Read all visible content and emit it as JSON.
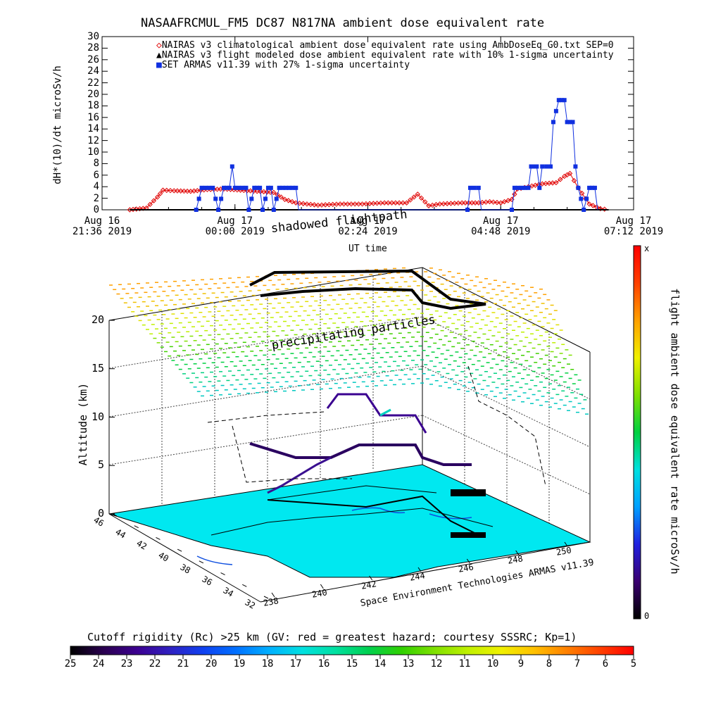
{
  "title": "NASAAFRCMUL_FM5 DC87 N817NA ambient dose equivalent rate",
  "chart_data": [
    {
      "type": "line",
      "title": "NASAAFRCMUL_FM5 DC87 N817NA ambient dose equivalent rate",
      "ylabel": "dH*(10)/dt microSv/h",
      "xlabel": "UT time",
      "ylim": [
        0,
        30
      ],
      "yticks": [
        "0",
        "2",
        "4",
        "6",
        "8",
        "10",
        "12",
        "14",
        "16",
        "18",
        "20",
        "22",
        "24",
        "26",
        "28",
        "30"
      ],
      "xticks": [
        {
          "day": "Aug 16",
          "time": "21:36 2019",
          "x_hours": -2.4
        },
        {
          "day": "Aug 17",
          "time": "00:00 2019",
          "x_hours": 0.0
        },
        {
          "day": "Aug 17",
          "time": "02:24 2019",
          "x_hours": 2.4
        },
        {
          "day": "Aug 17",
          "time": "04:48 2019",
          "x_hours": 4.8
        },
        {
          "day": "Aug 17",
          "time": "07:12 2019",
          "x_hours": 7.2
        }
      ],
      "legend": [
        {
          "label": "NAIRAS v3 climatological ambient dose equivalent rate using AmbDoseEq_G0.txt SEP=0",
          "marker": "diamond",
          "color": "#e00000"
        },
        {
          "label": "NAIRAS v3 flight modeled dose ambient equivalent rate with 10% 1-sigma uncertainty",
          "marker": "triangle",
          "color": "#000000"
        },
        {
          "label": "SET ARMAS v11.39 with 27% 1-sigma uncertainty",
          "marker": "square",
          "color": "#1030e0"
        }
      ],
      "series": [
        {
          "name": "NAIRAS v3 climatological ambient dose equivalent rate using AmbDoseEq_G0.txt SEP=0",
          "color": "#e00000",
          "points": [
            [
              -1.9,
              0
            ],
            [
              -1.6,
              0.3
            ],
            [
              -1.4,
              2.2
            ],
            [
              -1.3,
              3.4
            ],
            [
              -1.1,
              3.3
            ],
            [
              -0.8,
              3.2
            ],
            [
              -0.5,
              3.5
            ],
            [
              -0.2,
              3.6
            ],
            [
              0.1,
              3.4
            ],
            [
              0.4,
              3.2
            ],
            [
              0.7,
              3.0
            ],
            [
              0.9,
              1.8
            ],
            [
              1.1,
              1.2
            ],
            [
              1.5,
              0.8
            ],
            [
              1.9,
              1.0
            ],
            [
              2.3,
              1.0
            ],
            [
              2.7,
              1.2
            ],
            [
              3.1,
              1.2
            ],
            [
              3.3,
              2.7
            ],
            [
              3.5,
              0.7
            ],
            [
              3.7,
              1.0
            ],
            [
              4.1,
              1.2
            ],
            [
              4.4,
              1.2
            ],
            [
              4.6,
              1.4
            ],
            [
              4.8,
              1.2
            ],
            [
              5.0,
              1.8
            ],
            [
              5.1,
              3.6
            ],
            [
              5.3,
              4.0
            ],
            [
              5.55,
              4.5
            ],
            [
              5.8,
              4.7
            ],
            [
              5.95,
              5.8
            ],
            [
              6.05,
              6.3
            ],
            [
              6.2,
              3.8
            ],
            [
              6.4,
              1.0
            ],
            [
              6.6,
              0.2
            ],
            [
              6.75,
              0
            ]
          ]
        },
        {
          "name": "NAIRAS v3 flight modeled dose ambient equivalent rate with 10% 1-sigma uncertainty",
          "color": "#000000",
          "points": [
            [
              -1.9,
              0
            ],
            [
              6.75,
              0
            ]
          ]
        },
        {
          "name": "SET ARMAS v11.39 with 27% 1-sigma uncertainty",
          "color": "#1030e0",
          "points": [
            [
              -0.7,
              0
            ],
            [
              -0.6,
              3.8
            ],
            [
              -0.4,
              3.8
            ],
            [
              -0.3,
              0
            ],
            [
              -0.2,
              3.8
            ],
            [
              -0.1,
              3.8
            ],
            [
              -0.05,
              7.5
            ],
            [
              0.0,
              3.8
            ],
            [
              0.2,
              3.8
            ],
            [
              0.25,
              0
            ],
            [
              0.35,
              3.8
            ],
            [
              0.45,
              3.8
            ],
            [
              0.5,
              0
            ],
            [
              0.6,
              3.8
            ],
            [
              0.65,
              3.8
            ],
            [
              0.7,
              0
            ],
            [
              0.8,
              3.8
            ],
            [
              1.1,
              3.8
            ],
            [
              1.15,
              0
            ],
            [
              4.2,
              0
            ],
            [
              4.25,
              3.8
            ],
            [
              4.4,
              3.8
            ],
            [
              4.45,
              0
            ],
            [
              5.0,
              0
            ],
            [
              5.05,
              3.8
            ],
            [
              5.3,
              3.8
            ],
            [
              5.35,
              7.5
            ],
            [
              5.45,
              7.5
            ],
            [
              5.5,
              3.8
            ],
            [
              5.55,
              7.5
            ],
            [
              5.7,
              7.5
            ],
            [
              5.75,
              15.2
            ],
            [
              5.85,
              19.0
            ],
            [
              5.95,
              19.0
            ],
            [
              6.0,
              15.2
            ],
            [
              6.1,
              15.2
            ],
            [
              6.15,
              7.5
            ],
            [
              6.2,
              3.8
            ],
            [
              6.3,
              0
            ],
            [
              6.4,
              3.8
            ],
            [
              6.5,
              3.8
            ],
            [
              6.55,
              0
            ]
          ]
        }
      ]
    },
    {
      "type": "3d-surface",
      "overlay_labels": {
        "shadowed": "shadowed flightpath",
        "precipitating": "precipitating particles"
      },
      "zlabel": "Altitude (km)",
      "zlim": [
        0,
        20
      ],
      "zticks": [
        "0",
        "5",
        "10",
        "15",
        "20"
      ],
      "lat_ticks": [
        "46",
        "44",
        "42",
        "40",
        "38",
        "36",
        "34",
        "32"
      ],
      "lon_ticks": [
        "238",
        "240",
        "242",
        "244",
        "246",
        "248",
        "250"
      ],
      "credit": "Space Environment Technologies ARMAS v11.39",
      "right_colorbar": {
        "label": "flight ambient dose equivalent rate microSv/h",
        "max_label": "x",
        "min_label": "0",
        "colors": [
          "#000000",
          "#3a0070",
          "#2020e0",
          "#00a0ff",
          "#00e0e0",
          "#00d040",
          "#80e000",
          "#f0f000",
          "#ffa000",
          "#ff4000",
          "#ff0000"
        ]
      },
      "bottom_colorbar": {
        "title": "Cutoff rigidity (Rc) >25 km (GV: red = greatest hazard; courtesy SSSRC; Kp=1)",
        "ticks": [
          "25",
          "24",
          "23",
          "22",
          "21",
          "20",
          "19",
          "18",
          "17",
          "16",
          "15",
          "14",
          "13",
          "12",
          "11",
          "10",
          "9",
          "8",
          "7",
          "6",
          "5"
        ],
        "colors": [
          "#000000",
          "#2a0050",
          "#3c0090",
          "#3020c0",
          "#1040f0",
          "#0070ff",
          "#00b0ff",
          "#00e0e0",
          "#00e0a0",
          "#00d050",
          "#30d000",
          "#80e000",
          "#c0f000",
          "#f0f000",
          "#ffc000",
          "#ff8000",
          "#ff4000",
          "#ff0000"
        ]
      }
    }
  ]
}
